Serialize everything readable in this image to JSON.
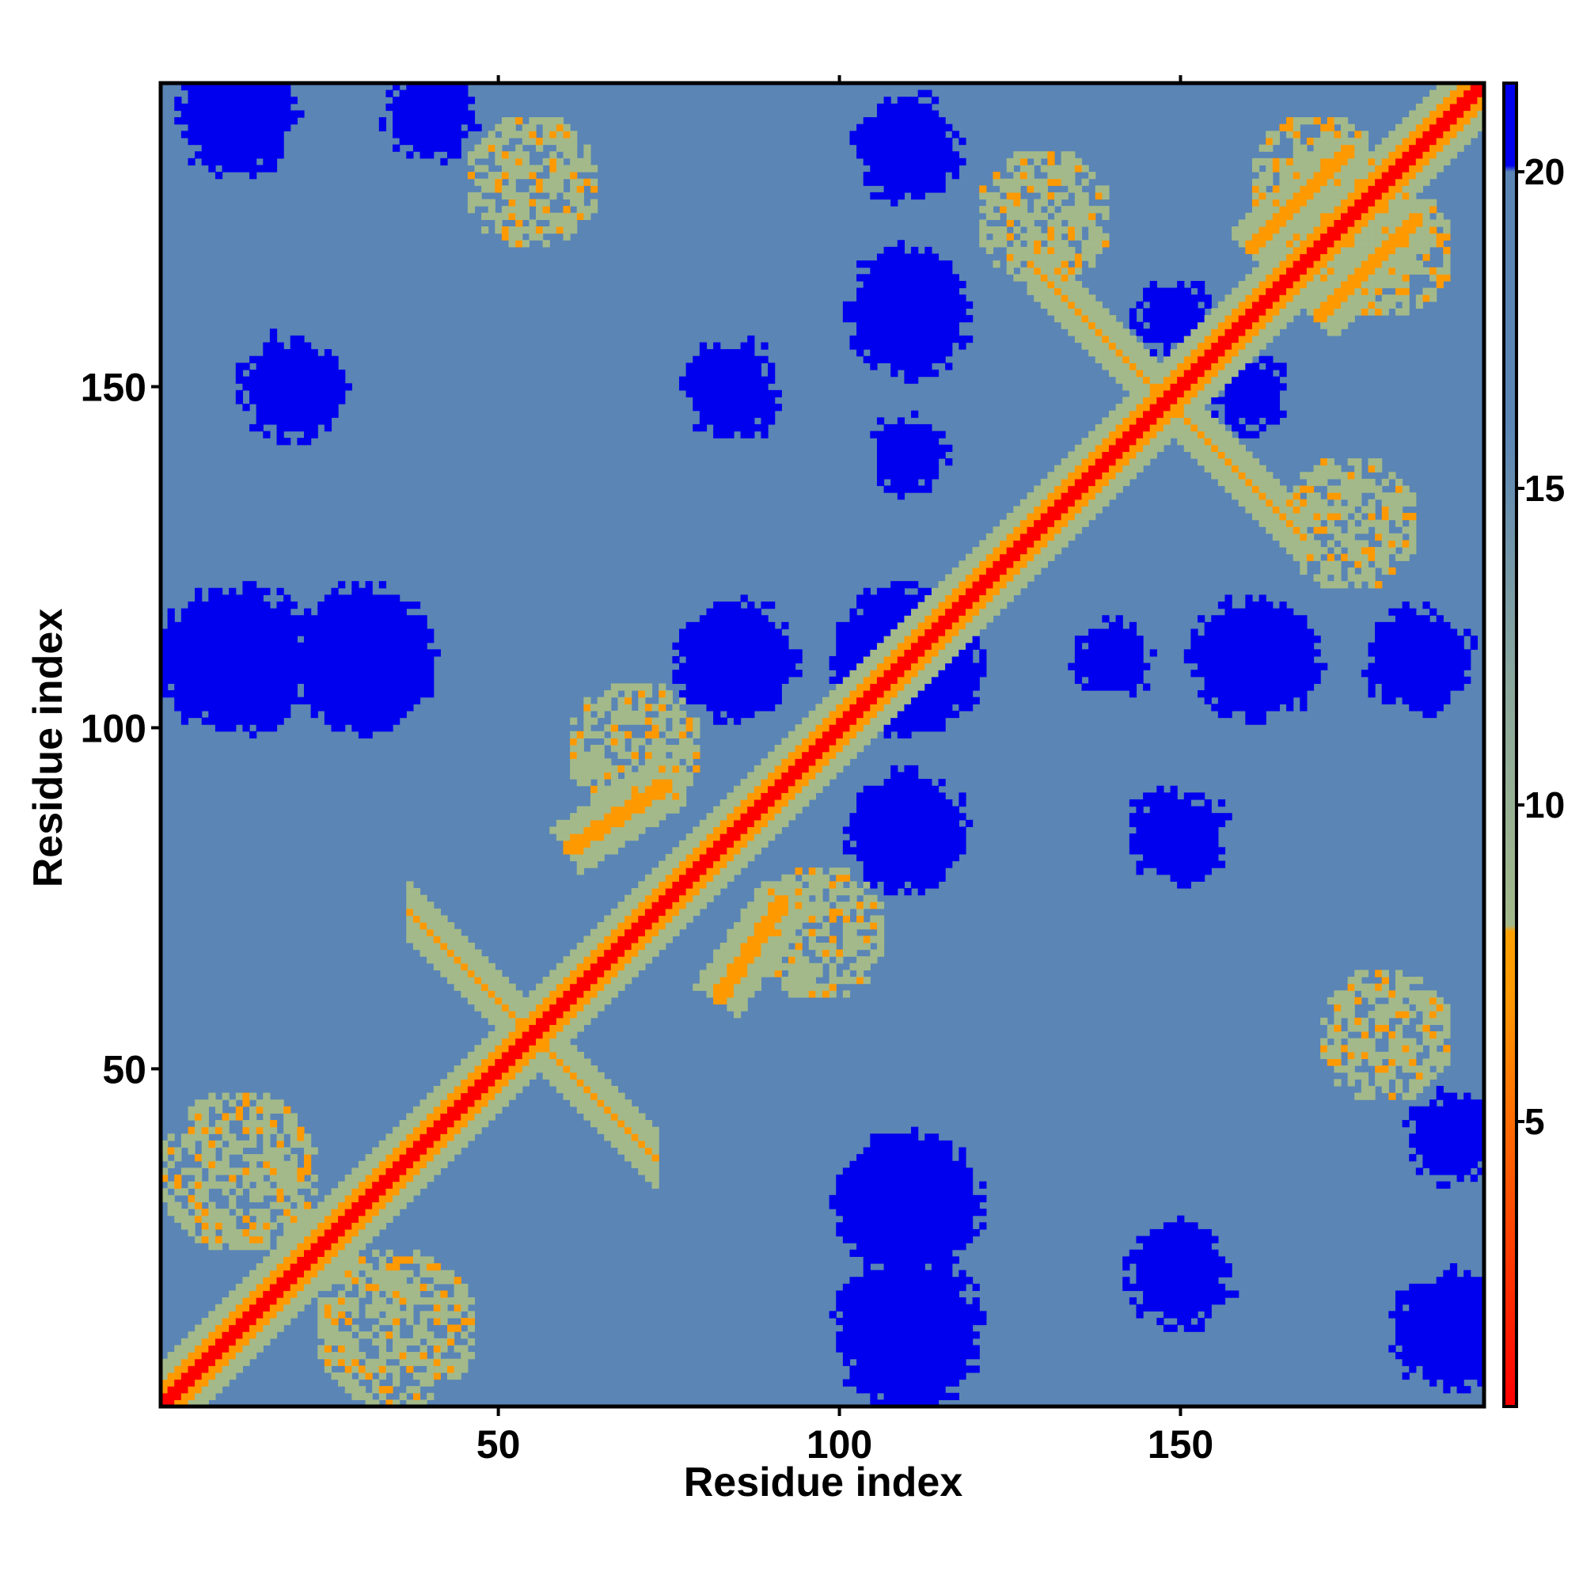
{
  "chart_data": {
    "type": "heatmap",
    "title": "",
    "xlabel": "Residue index",
    "ylabel": "Residue index",
    "n_residues": 194,
    "xlim": [
      1,
      194
    ],
    "ylim": [
      1,
      194
    ],
    "x_ticks": [
      50,
      100,
      150
    ],
    "y_ticks": [
      50,
      100,
      150
    ],
    "colorbar": {
      "min": 0.5,
      "max": 21.4,
      "ticks": [
        5,
        10,
        15,
        20
      ],
      "stops": [
        {
          "value": 0.5,
          "color": "#ff0000"
        },
        {
          "value": 4.0,
          "color": "#ff5500"
        },
        {
          "value": 7.0,
          "color": "#ff9900"
        },
        {
          "value": 8.0,
          "color": "#ffa000"
        },
        {
          "value": 8.1,
          "color": "#a3b98a"
        },
        {
          "value": 12.0,
          "color": "#8aa79d"
        },
        {
          "value": 16.0,
          "color": "#5a85b5"
        },
        {
          "value": 20.0,
          "color": "#5a85b5"
        },
        {
          "value": 20.1,
          "color": "#0000ee"
        },
        {
          "value": 21.4,
          "color": "#0000ee"
        }
      ]
    },
    "colors": {
      "contact": "#ff0000",
      "near": "#ff9900",
      "mid": "#a3b98a",
      "background": "#5a85b5",
      "far": "#0000ee"
    },
    "grid": false,
    "legend": "colorbar-right",
    "contact_features": [
      {
        "kind": "diagonal",
        "i": 1,
        "j": 194,
        "value": 1.0
      },
      {
        "kind": "antiparallel",
        "center": [
          55,
          55
        ],
        "length": 18,
        "value": 6.0
      },
      {
        "kind": "antiparallel",
        "center": [
          148,
          148
        ],
        "length": 20,
        "value": 6.0
      },
      {
        "kind": "parallel",
        "start": [
          82,
          60
        ],
        "end": [
          92,
          75
        ],
        "value": 6.5
      },
      {
        "kind": "parallel",
        "start": [
          170,
          160
        ],
        "end": [
          185,
          175
        ],
        "value": 6.5
      },
      {
        "kind": "blob",
        "center": [
          12,
          35
        ],
        "radius": 12,
        "value": 9.5
      },
      {
        "kind": "blob",
        "center": [
          70,
          97
        ],
        "radius": 10,
        "value": 10.0
      },
      {
        "kind": "blob",
        "center": [
          180,
          55
        ],
        "radius": 10,
        "value": 10.0
      },
      {
        "kind": "blob",
        "center": [
          130,
          175
        ],
        "radius": 10,
        "value": 10.0
      },
      {
        "kind": "blob",
        "center": [
          170,
          180
        ],
        "radius": 10,
        "value": 10.5
      }
    ],
    "far_regions": [
      {
        "center": [
          110,
          163
        ],
        "radius": 7
      },
      {
        "center": [
          84,
          150
        ],
        "radius": 6
      },
      {
        "center": [
          110,
          140
        ],
        "radius": 5
      },
      {
        "center": [
          110,
          110
        ],
        "radius": 10
      },
      {
        "center": [
          84,
          110
        ],
        "radius": 6
      },
      {
        "center": [
          12,
          110
        ],
        "radius": 10
      },
      {
        "center": [
          30,
          110
        ],
        "radius": 10
      },
      {
        "center": [
          160,
          110
        ],
        "radius": 8
      },
      {
        "center": [
          185,
          110
        ],
        "radius": 7
      },
      {
        "center": [
          110,
          85
        ],
        "radius": 8
      },
      {
        "center": [
          148,
          85
        ],
        "radius": 5
      },
      {
        "center": [
          110,
          30
        ],
        "radius": 9
      },
      {
        "center": [
          110,
          8
        ],
        "radius": 8
      },
      {
        "center": [
          150,
          20
        ],
        "radius": 7
      },
      {
        "center": [
          12,
          190
        ],
        "radius": 8
      },
      {
        "center": [
          40,
          190
        ],
        "radius": 6
      },
      {
        "center": [
          190,
          12
        ],
        "radius": 5
      },
      {
        "center": [
          148,
          160
        ],
        "radius": 4
      },
      {
        "center": [
          160,
          150
        ],
        "radius": 4
      }
    ]
  }
}
